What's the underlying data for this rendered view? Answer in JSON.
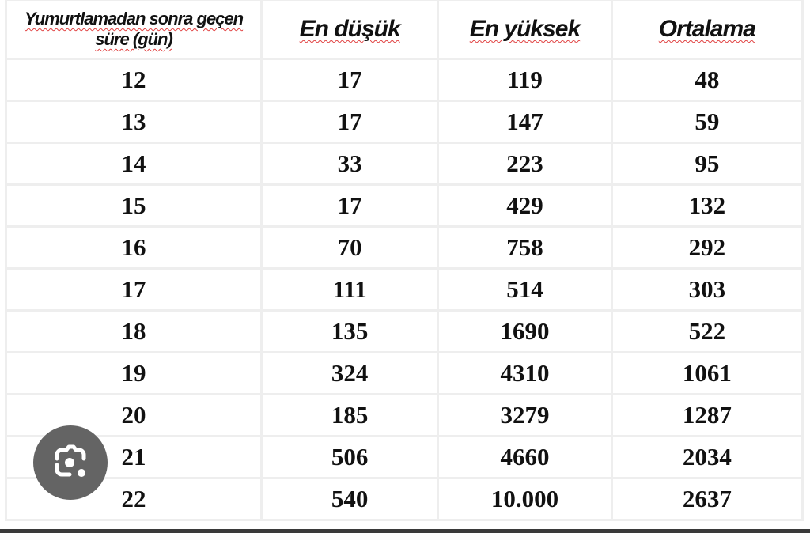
{
  "table": {
    "headers": [
      "Yumurtlamadan sonra geçen süre (gün)",
      "En düşük",
      "En yüksek",
      "Ortalama"
    ],
    "rows": [
      [
        "12",
        "17",
        "119",
        "48"
      ],
      [
        "13",
        "17",
        "147",
        "59"
      ],
      [
        "14",
        "33",
        "223",
        "95"
      ],
      [
        "15",
        "17",
        "429",
        "132"
      ],
      [
        "16",
        "70",
        "758",
        "292"
      ],
      [
        "17",
        "111",
        "514",
        "303"
      ],
      [
        "18",
        "135",
        "1690",
        "522"
      ],
      [
        "19",
        "324",
        "4310",
        "1061"
      ],
      [
        "20",
        "185",
        "3279",
        "1287"
      ],
      [
        "21",
        "506",
        "4660",
        "2034"
      ],
      [
        "22",
        "540",
        "10.000",
        "2637"
      ]
    ]
  },
  "overlay": {
    "icon": "google-lens-icon",
    "color": "#646464"
  }
}
